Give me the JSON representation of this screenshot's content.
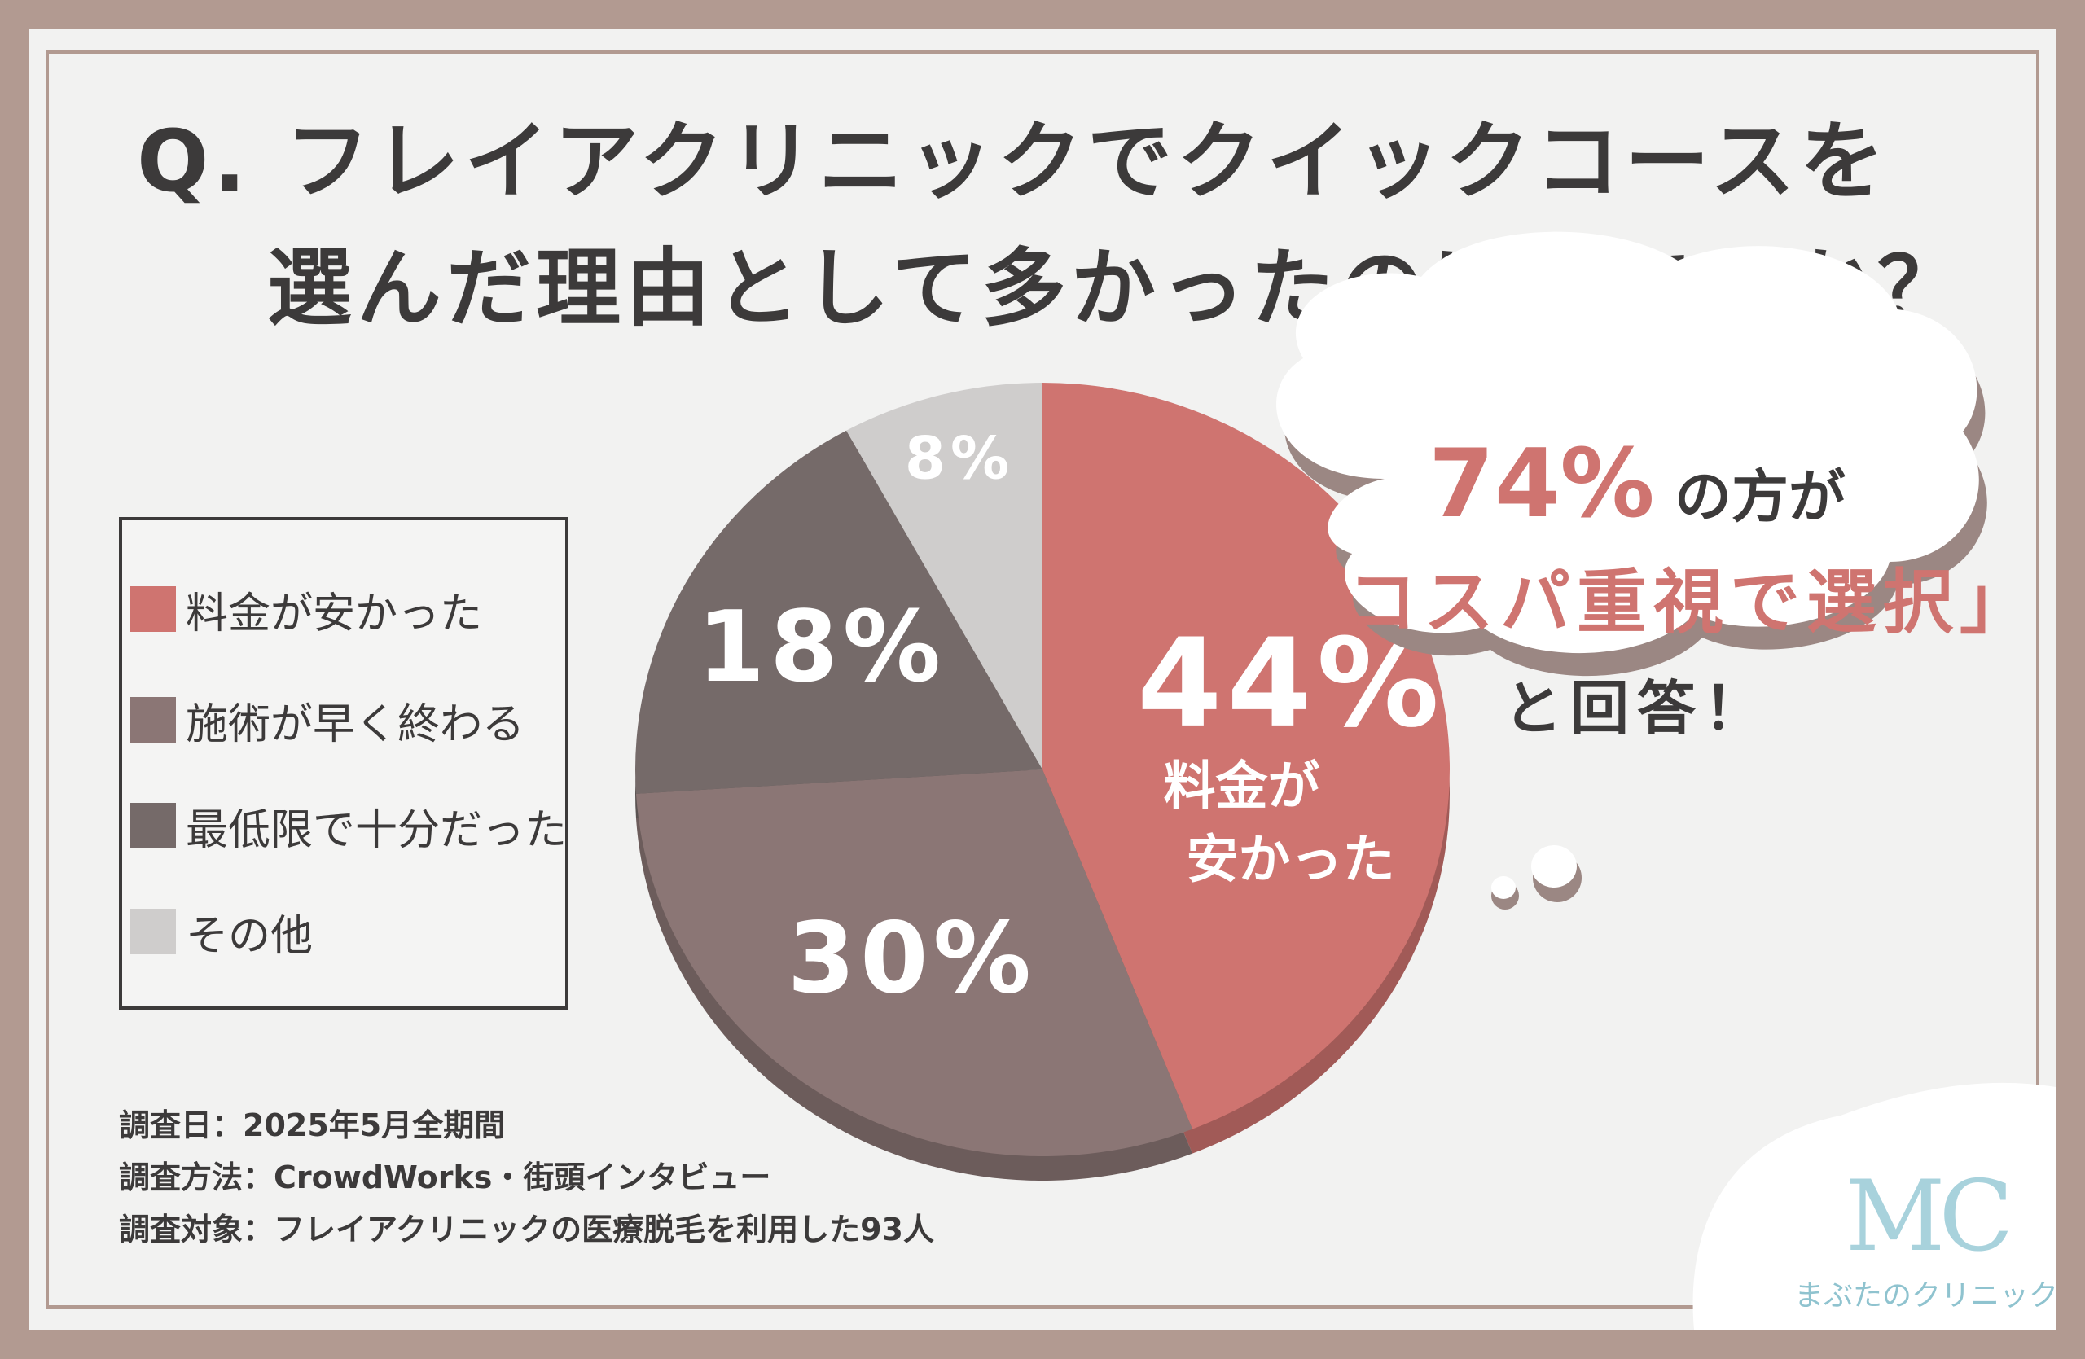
{
  "title": {
    "line1": "Q. フレイアクリニックでクイックコースを",
    "line2": "選んだ理由として多かったのは何ですか？"
  },
  "chart_data": {
    "type": "pie",
    "title": "Q. フレイアクリニックでクイックコースを選んだ理由として多かったのは何ですか？",
    "slices": [
      {
        "label": "料金が安かった",
        "value": 44,
        "display": "44%",
        "sub_label_1": "料金が",
        "sub_label_2": "安かった",
        "color": "#cf7470"
      },
      {
        "label": "施術が早く終わる",
        "value": 30,
        "display": "30%",
        "color": "#8b7675"
      },
      {
        "label": "最低限で十分だった",
        "value": 18,
        "display": "18%",
        "color": "#756a69"
      },
      {
        "label": "その他",
        "value": 8,
        "display": "8%",
        "color": "#cfcdcc"
      }
    ],
    "legend_position": "left"
  },
  "callout": {
    "percent": "74%",
    "line1_rest": "の方が",
    "line2": "「コスパ重視で選択」",
    "line3": "と回答！"
  },
  "source": {
    "date": "調査日：2025年5月全期間",
    "method": "調査方法：CrowdWorks・街頭インタビュー",
    "target": "調査対象：フレイアクリニックの医療脱毛を利用した93人"
  },
  "logo": {
    "mark": "MC",
    "name": "まぶたのクリニック"
  },
  "colors": {
    "background": "#f2f2f1",
    "frame": "#b29a91",
    "accent": "#cf7470",
    "text": "#3c3a3a"
  }
}
